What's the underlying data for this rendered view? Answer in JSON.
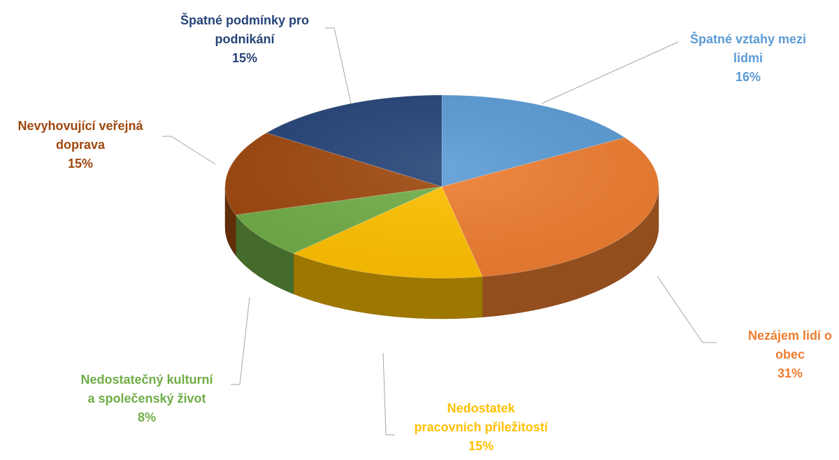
{
  "chart_data": {
    "type": "pie",
    "style": "3d",
    "title": "",
    "slices": [
      {
        "label_lines": [
          "Špatné vztahy mezi",
          "lidmi"
        ],
        "percent_label": "16%",
        "value": 16,
        "color": "#5b9bd5"
      },
      {
        "label_lines": [
          "Nezájem lidí o",
          "obec"
        ],
        "percent_label": "31%",
        "value": 31,
        "color": "#ed7d31"
      },
      {
        "label_lines": [
          "Nedostatek",
          "pracovních příležitostí"
        ],
        "percent_label": "15%",
        "value": 15,
        "color": "#ffc000"
      },
      {
        "label_lines": [
          "Nedostatečný kulturní",
          "a společenský život"
        ],
        "percent_label": "8%",
        "value": 8,
        "color": "#70ad47"
      },
      {
        "label_lines": [
          "Nevyhovující veřejná",
          "doprava"
        ],
        "percent_label": "15%",
        "value": 15,
        "color": "#9e480e"
      },
      {
        "label_lines": [
          "Špatné podmínky pro",
          "podnikání"
        ],
        "percent_label": "15%",
        "value": 15,
        "color": "#264478"
      }
    ],
    "label_colors": [
      "#5b9bd5",
      "#ed7d31",
      "#ffc000",
      "#70ad47",
      "#9e480e",
      "#264478"
    ],
    "legend": "none",
    "data_labels": "outside with leader lines"
  }
}
